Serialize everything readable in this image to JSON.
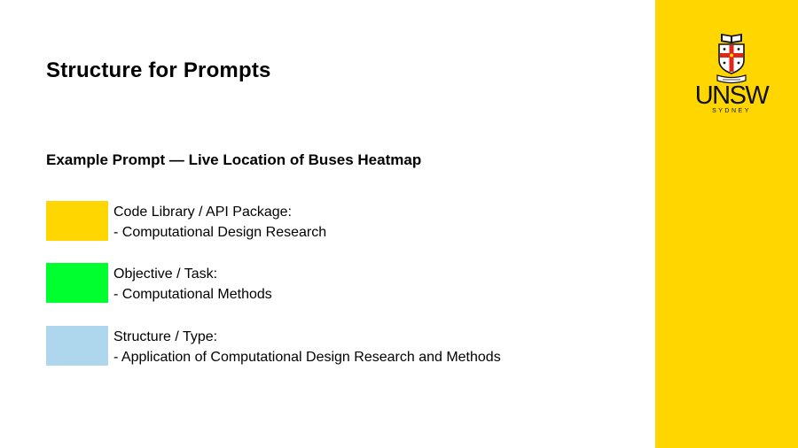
{
  "slide": {
    "title": "Structure for Prompts",
    "subtitle": "Example Prompt — Live Location of Buses Heatmap"
  },
  "legend": [
    {
      "color": "#FFD600",
      "color_name": "yellow",
      "label": "Code Library / API Package:",
      "detail": "- Computational Design Research"
    },
    {
      "color": "#00FF2E",
      "color_name": "green",
      "label": "Objective / Task:",
      "detail": "- Computational Methods"
    },
    {
      "color": "#AED6ED",
      "color_name": "light-blue",
      "label": "Structure / Type:",
      "detail": "- Application of Computational Design Research and Methods"
    }
  ],
  "brand": {
    "name": "UNSW",
    "location": "SYDNEY",
    "crest_icon": "unsw-crest-icon",
    "panel_color": "#FFD600"
  }
}
